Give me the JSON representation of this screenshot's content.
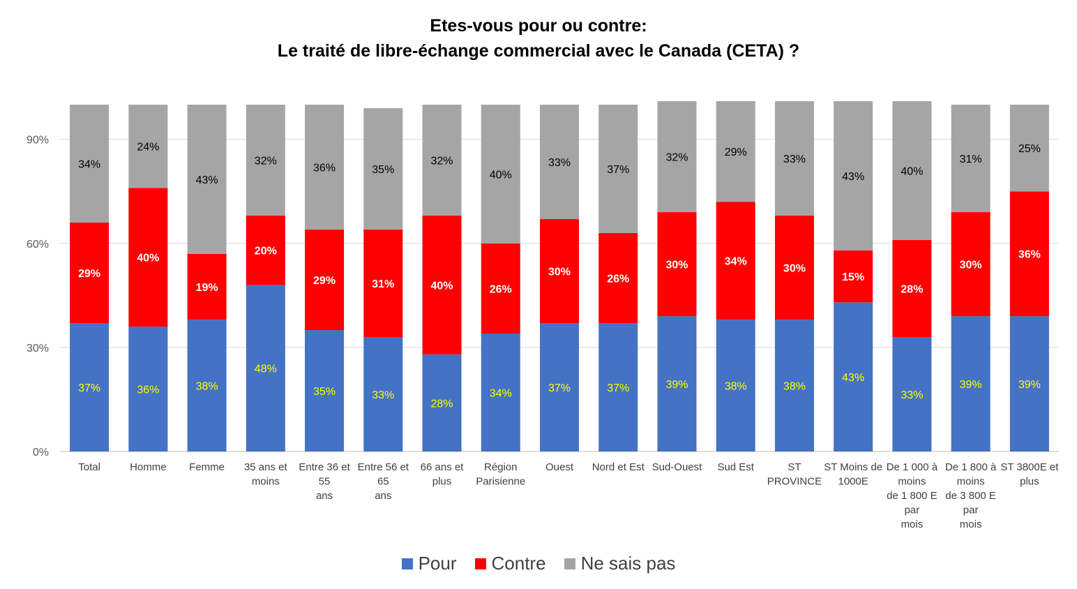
{
  "chart_data": {
    "type": "bar",
    "stacked": true,
    "title": "Etes-vous pour ou contre:",
    "subtitle": "Le traité de libre-échange commercial avec le Canada (CETA) ?",
    "ylim": [
      0,
      100
    ],
    "yticks": [
      0,
      30,
      60,
      90
    ],
    "ytick_labels": [
      "0%",
      "30%",
      "60%",
      "90%"
    ],
    "grid": true,
    "legend_position": "bottom",
    "categories": [
      [
        "Total"
      ],
      [
        "Homme"
      ],
      [
        "Femme"
      ],
      [
        "35 ans et",
        "moins"
      ],
      [
        "Entre 36 et",
        "55",
        "ans"
      ],
      [
        "Entre 56 et",
        "65",
        "ans"
      ],
      [
        "66 ans et",
        "plus"
      ],
      [
        "Région",
        "Parisienne"
      ],
      [
        "Ouest"
      ],
      [
        "Nord et Est"
      ],
      [
        "Sud-Ouest"
      ],
      [
        "Sud Est"
      ],
      [
        "ST",
        "PROVINCE"
      ],
      [
        "ST Moins de",
        "1000E"
      ],
      [
        "De 1 000 à",
        "moins",
        "de 1 800 E",
        "par",
        "mois"
      ],
      [
        "De 1 800 à",
        "moins",
        "de 3 800 E",
        "par",
        "mois"
      ],
      [
        "ST 3800E et",
        "plus"
      ]
    ],
    "series": [
      {
        "name": "Pour",
        "color": "#4472C4",
        "label_color": "#FFFF00",
        "values": [
          37,
          36,
          38,
          48,
          35,
          33,
          28,
          34,
          37,
          37,
          39,
          38,
          38,
          43,
          33,
          39,
          39
        ],
        "labels": [
          "37%",
          "36%",
          "38%",
          "48%",
          "35%",
          "33%",
          "28%",
          "34%",
          "37%",
          "37%",
          "39%",
          "38%",
          "38%",
          "43%",
          "33%",
          "39%",
          "39%"
        ]
      },
      {
        "name": "Contre",
        "color": "#FF0000",
        "label_color": "#FFFFFF",
        "values": [
          29,
          40,
          19,
          20,
          29,
          31,
          40,
          26,
          30,
          26,
          30,
          34,
          30,
          15,
          28,
          30,
          36
        ],
        "labels": [
          "29%",
          "40%",
          "19%",
          "20%",
          "29%",
          "31%",
          "40%",
          "26%",
          "30%",
          "26%",
          "30%",
          "34%",
          "30%",
          "15%",
          "28%",
          "30%",
          "36%"
        ]
      },
      {
        "name": "Ne sais pas",
        "color": "#A5A5A5",
        "label_color": "#000000",
        "values": [
          34,
          24,
          43,
          32,
          36,
          35,
          32,
          40,
          33,
          37,
          32,
          29,
          33,
          43,
          40,
          31,
          25
        ],
        "labels": [
          "34%",
          "24%",
          "43%",
          "32%",
          "36%",
          "35%",
          "32%",
          "40%",
          "33%",
          "37%",
          "32%",
          "29%",
          "33%",
          "43%",
          "40%",
          "31%",
          "25%"
        ]
      }
    ]
  }
}
